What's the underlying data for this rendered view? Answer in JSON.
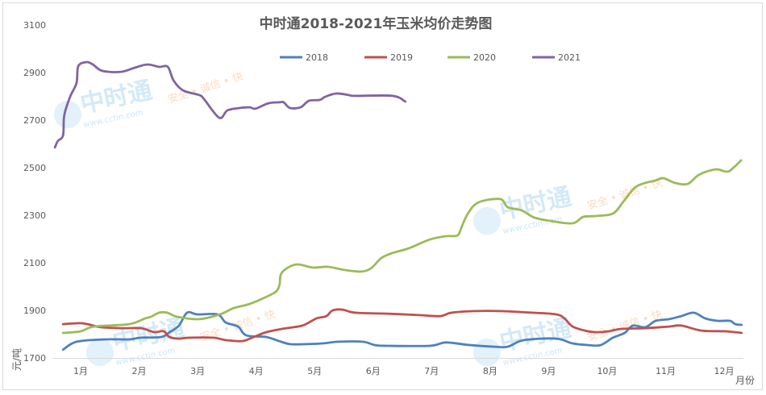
{
  "chart_data": {
    "type": "line",
    "title": "中时通2018-2021年玉米均价走势图",
    "xlabel": "月份",
    "ylabel": "元/吨",
    "ylim": [
      1700,
      3100
    ],
    "yticks": [
      1700,
      1900,
      2100,
      2300,
      2500,
      2700,
      2900,
      3100
    ],
    "xticks": [
      {
        "month": 1,
        "label": "1月"
      },
      {
        "month": 2,
        "label": "2月"
      },
      {
        "month": 3,
        "label": "3月"
      },
      {
        "month": 4,
        "label": "4月"
      },
      {
        "month": 5,
        "label": "5月"
      },
      {
        "month": 6,
        "label": "6月"
      },
      {
        "month": 7,
        "label": "7月"
      },
      {
        "month": 8,
        "label": "8月"
      },
      {
        "month": 9,
        "label": "9月"
      },
      {
        "month": 10,
        "label": "10月"
      },
      {
        "month": 11,
        "label": "11月"
      },
      {
        "month": 12,
        "label": "12月"
      }
    ],
    "grid": false,
    "legend_position": "top",
    "series": [
      {
        "name": "2018",
        "color": "#4f81bd",
        "points": [
          [
            0.7,
            1735
          ],
          [
            0.93,
            1768
          ],
          [
            1.41,
            1778
          ],
          [
            1.83,
            1778
          ],
          [
            2.03,
            1785
          ],
          [
            2.38,
            1788
          ],
          [
            2.52,
            1808
          ],
          [
            2.68,
            1836
          ],
          [
            2.82,
            1890
          ],
          [
            3.0,
            1883
          ],
          [
            3.34,
            1883
          ],
          [
            3.48,
            1849
          ],
          [
            3.69,
            1832
          ],
          [
            3.83,
            1795
          ],
          [
            4.17,
            1788
          ],
          [
            4.38,
            1772
          ],
          [
            4.58,
            1758
          ],
          [
            4.86,
            1758
          ],
          [
            5.13,
            1761
          ],
          [
            5.41,
            1768
          ],
          [
            5.82,
            1768
          ],
          [
            6.03,
            1754
          ],
          [
            6.24,
            1751
          ],
          [
            6.97,
            1751
          ],
          [
            7.24,
            1765
          ],
          [
            7.62,
            1755
          ],
          [
            8.07,
            1747
          ],
          [
            8.3,
            1747
          ],
          [
            8.58,
            1775
          ],
          [
            9.13,
            1781
          ],
          [
            9.41,
            1761
          ],
          [
            9.68,
            1754
          ],
          [
            9.89,
            1754
          ],
          [
            10.1,
            1785
          ],
          [
            10.3,
            1805
          ],
          [
            10.44,
            1836
          ],
          [
            10.65,
            1829
          ],
          [
            10.83,
            1856
          ],
          [
            11.06,
            1863
          ],
          [
            11.27,
            1876
          ],
          [
            11.48,
            1890
          ],
          [
            11.68,
            1866
          ],
          [
            11.89,
            1856
          ],
          [
            12.1,
            1856
          ],
          [
            12.19,
            1842
          ],
          [
            12.3,
            1839
          ]
        ]
      },
      {
        "name": "2019",
        "color": "#c0504d",
        "points": [
          [
            0.7,
            1842
          ],
          [
            1.0,
            1846
          ],
          [
            1.17,
            1839
          ],
          [
            1.34,
            1829
          ],
          [
            1.69,
            1825
          ],
          [
            2.03,
            1825
          ],
          [
            2.17,
            1815
          ],
          [
            2.27,
            1808
          ],
          [
            2.42,
            1812
          ],
          [
            2.52,
            1788
          ],
          [
            2.68,
            1781
          ],
          [
            2.86,
            1785
          ],
          [
            3.27,
            1785
          ],
          [
            3.48,
            1775
          ],
          [
            3.76,
            1771
          ],
          [
            3.96,
            1788
          ],
          [
            4.17,
            1808
          ],
          [
            4.44,
            1822
          ],
          [
            4.79,
            1836
          ],
          [
            5.03,
            1866
          ],
          [
            5.2,
            1876
          ],
          [
            5.31,
            1900
          ],
          [
            5.48,
            1903
          ],
          [
            5.69,
            1890
          ],
          [
            6.24,
            1886
          ],
          [
            6.79,
            1880
          ],
          [
            7.15,
            1876
          ],
          [
            7.34,
            1890
          ],
          [
            7.75,
            1897
          ],
          [
            8.17,
            1897
          ],
          [
            8.72,
            1890
          ],
          [
            9.13,
            1883
          ],
          [
            9.27,
            1866
          ],
          [
            9.41,
            1832
          ],
          [
            9.62,
            1815
          ],
          [
            9.82,
            1808
          ],
          [
            10.03,
            1812
          ],
          [
            10.24,
            1822
          ],
          [
            10.65,
            1825
          ],
          [
            11.06,
            1832
          ],
          [
            11.27,
            1836
          ],
          [
            11.61,
            1815
          ],
          [
            12.03,
            1812
          ],
          [
            12.3,
            1805
          ]
        ]
      },
      {
        "name": "2020",
        "color": "#9bbb59",
        "points": [
          [
            0.7,
            1805
          ],
          [
            1.0,
            1812
          ],
          [
            1.23,
            1832
          ],
          [
            1.83,
            1842
          ],
          [
            2.1,
            1866
          ],
          [
            2.2,
            1873
          ],
          [
            2.34,
            1890
          ],
          [
            2.48,
            1890
          ],
          [
            2.65,
            1873
          ],
          [
            3.03,
            1863
          ],
          [
            3.38,
            1883
          ],
          [
            3.62,
            1910
          ],
          [
            3.89,
            1927
          ],
          [
            4.21,
            1961
          ],
          [
            4.35,
            1981
          ],
          [
            4.4,
            2008
          ],
          [
            4.44,
            2059
          ],
          [
            4.68,
            2093
          ],
          [
            4.97,
            2080
          ],
          [
            5.23,
            2083
          ],
          [
            5.51,
            2070
          ],
          [
            5.78,
            2063
          ],
          [
            5.96,
            2076
          ],
          [
            6.14,
            2120
          ],
          [
            6.33,
            2141
          ],
          [
            6.61,
            2161
          ],
          [
            6.97,
            2198
          ],
          [
            7.24,
            2212
          ],
          [
            7.44,
            2215
          ],
          [
            7.51,
            2249
          ],
          [
            7.62,
            2307
          ],
          [
            7.8,
            2354
          ],
          [
            8.17,
            2368
          ],
          [
            8.3,
            2334
          ],
          [
            8.54,
            2320
          ],
          [
            8.76,
            2290
          ],
          [
            9.04,
            2276
          ],
          [
            9.41,
            2266
          ],
          [
            9.59,
            2293
          ],
          [
            9.82,
            2297
          ],
          [
            10.1,
            2307
          ],
          [
            10.28,
            2358
          ],
          [
            10.47,
            2415
          ],
          [
            10.65,
            2436
          ],
          [
            10.83,
            2446
          ],
          [
            10.96,
            2456
          ],
          [
            11.16,
            2436
          ],
          [
            11.38,
            2432
          ],
          [
            11.57,
            2470
          ],
          [
            11.85,
            2493
          ],
          [
            12.05,
            2483
          ],
          [
            12.16,
            2500
          ],
          [
            12.29,
            2531
          ]
        ]
      },
      {
        "name": "2021",
        "color": "#8064a2",
        "points": [
          [
            0.56,
            2585
          ],
          [
            0.61,
            2612
          ],
          [
            0.7,
            2636
          ],
          [
            0.72,
            2720
          ],
          [
            0.82,
            2798
          ],
          [
            0.93,
            2856
          ],
          [
            0.96,
            2927
          ],
          [
            1.1,
            2944
          ],
          [
            1.21,
            2934
          ],
          [
            1.37,
            2907
          ],
          [
            1.69,
            2903
          ],
          [
            1.92,
            2920
          ],
          [
            2.14,
            2934
          ],
          [
            2.34,
            2924
          ],
          [
            2.49,
            2924
          ],
          [
            2.59,
            2866
          ],
          [
            2.75,
            2825
          ],
          [
            3.03,
            2805
          ],
          [
            3.11,
            2788
          ],
          [
            3.37,
            2710
          ],
          [
            3.51,
            2741
          ],
          [
            3.72,
            2751
          ],
          [
            3.89,
            2754
          ],
          [
            3.99,
            2748
          ],
          [
            4.21,
            2771
          ],
          [
            4.4,
            2775
          ],
          [
            4.47,
            2775
          ],
          [
            4.58,
            2751
          ],
          [
            4.76,
            2754
          ],
          [
            4.9,
            2781
          ],
          [
            5.09,
            2785
          ],
          [
            5.18,
            2798
          ],
          [
            5.37,
            2812
          ],
          [
            5.59,
            2805
          ],
          [
            5.69,
            2802
          ],
          [
            6.33,
            2802
          ],
          [
            6.55,
            2778
          ]
        ]
      }
    ]
  },
  "watermark": {
    "logo": "中时通",
    "url": "www.cctin.com",
    "slogan": "安全 • 诚信 • 快"
  }
}
